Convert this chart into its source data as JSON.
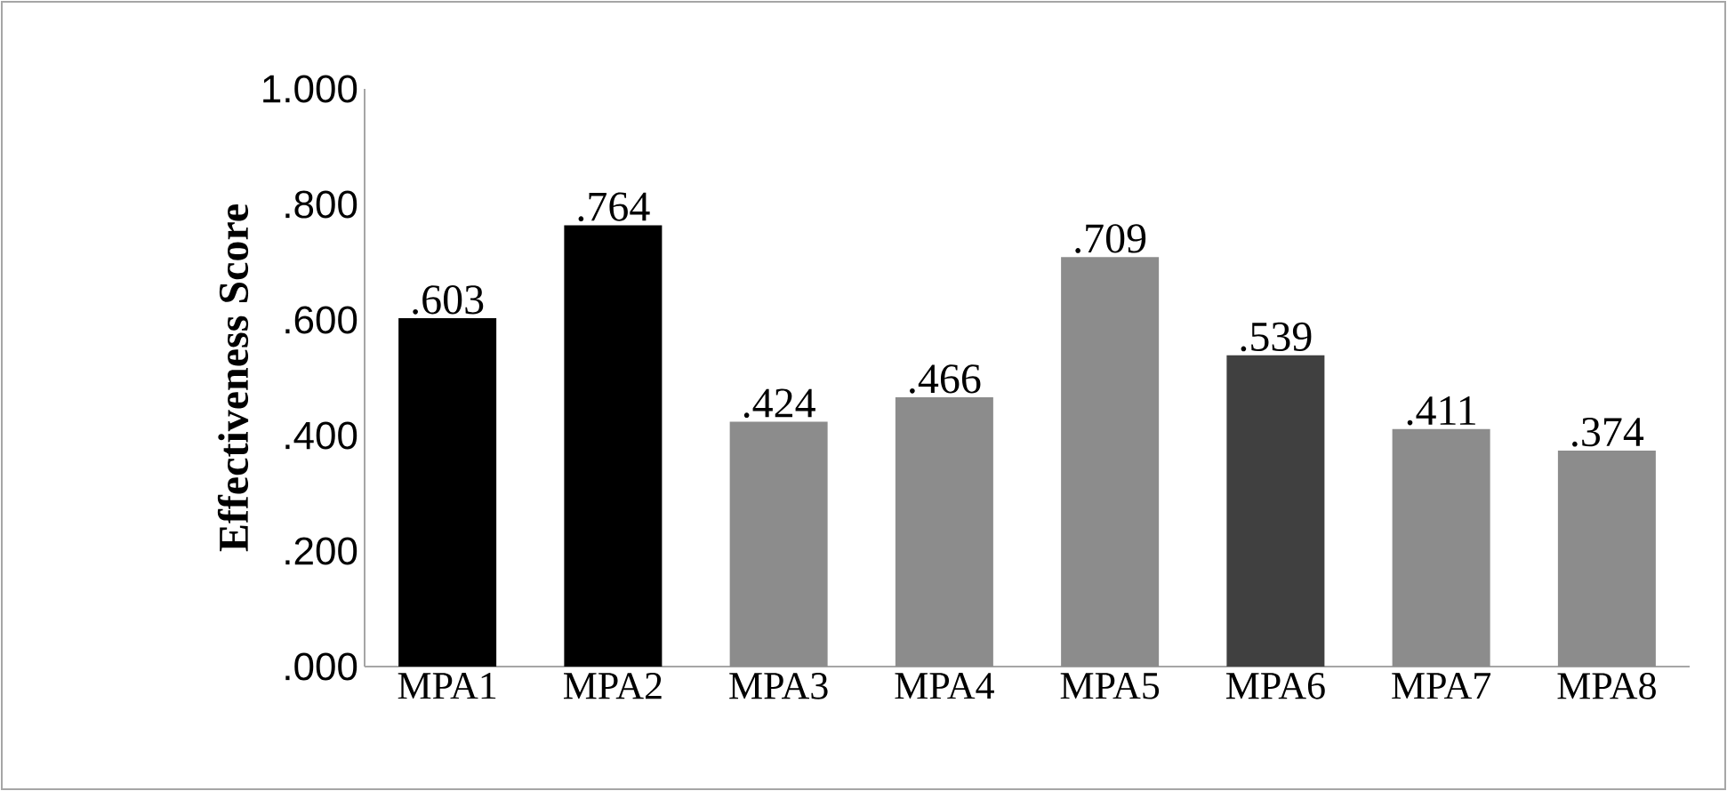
{
  "chart_data": {
    "type": "bar",
    "ylabel": "Effectiveness Score",
    "categories": [
      "MPA1",
      "MPA2",
      "MPA3",
      "MPA4",
      "MPA5",
      "MPA6",
      "MPA7",
      "MPA8"
    ],
    "values": [
      0.603,
      0.764,
      0.424,
      0.466,
      0.709,
      0.539,
      0.411,
      0.374
    ],
    "value_labels": [
      ".603",
      ".764",
      ".424",
      ".466",
      ".709",
      ".539",
      ".411",
      ".374"
    ],
    "colors": [
      "#000000",
      "#000000",
      "#8c8c8c",
      "#8c8c8c",
      "#8c8c8c",
      "#404040",
      "#8c8c8c",
      "#8c8c8c"
    ],
    "ylim": [
      0,
      1
    ],
    "yticks": [
      {
        "value": 0,
        "label": ".000"
      },
      {
        "value": 0.2,
        "label": ".200"
      },
      {
        "value": 0.4,
        "label": ".400"
      },
      {
        "value": 0.6,
        "label": ".600"
      },
      {
        "value": 0.8,
        "label": ".800"
      },
      {
        "value": 1,
        "label": "1.000"
      }
    ]
  }
}
